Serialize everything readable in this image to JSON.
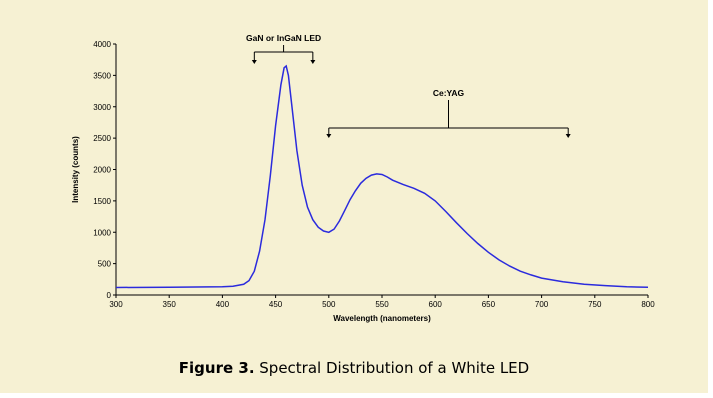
{
  "chart_data": {
    "type": "line",
    "xlabel": "Wavelength (nanometers)",
    "ylabel": "Intensity (counts)",
    "xlim": [
      300,
      800
    ],
    "ylim": [
      0,
      4000
    ],
    "x_ticks": [
      300,
      350,
      400,
      450,
      500,
      550,
      600,
      650,
      700,
      750,
      800
    ],
    "y_ticks": [
      0,
      500,
      1000,
      1500,
      2000,
      2500,
      3000,
      3500,
      4000
    ],
    "grid": false,
    "series": [
      {
        "color": "#2b2bdd",
        "x": [
          300,
          350,
          400,
          410,
          420,
          425,
          430,
          435,
          440,
          445,
          450,
          455,
          458,
          460,
          462,
          465,
          470,
          475,
          480,
          485,
          490,
          495,
          500,
          505,
          510,
          515,
          520,
          525,
          530,
          535,
          540,
          545,
          550,
          555,
          560,
          570,
          580,
          590,
          600,
          610,
          620,
          630,
          640,
          650,
          660,
          670,
          680,
          690,
          700,
          720,
          740,
          760,
          780,
          800
        ],
        "y": [
          120,
          125,
          130,
          140,
          170,
          230,
          380,
          700,
          1200,
          1900,
          2700,
          3350,
          3620,
          3650,
          3500,
          3050,
          2300,
          1750,
          1400,
          1200,
          1080,
          1020,
          1000,
          1050,
          1180,
          1350,
          1520,
          1660,
          1780,
          1860,
          1910,
          1930,
          1920,
          1880,
          1830,
          1760,
          1700,
          1620,
          1500,
          1330,
          1150,
          980,
          820,
          680,
          560,
          460,
          380,
          320,
          270,
          210,
          170,
          150,
          130,
          125
        ]
      }
    ],
    "annotations": [
      {
        "text": "GaN or InGaN  LED",
        "x_range": [
          430,
          485
        ]
      },
      {
        "text": "Ce:YAG",
        "x_range": [
          500,
          725
        ]
      }
    ]
  },
  "caption": {
    "label": "Figure 3.",
    "text": " Spectral Distribution of a White LED"
  }
}
